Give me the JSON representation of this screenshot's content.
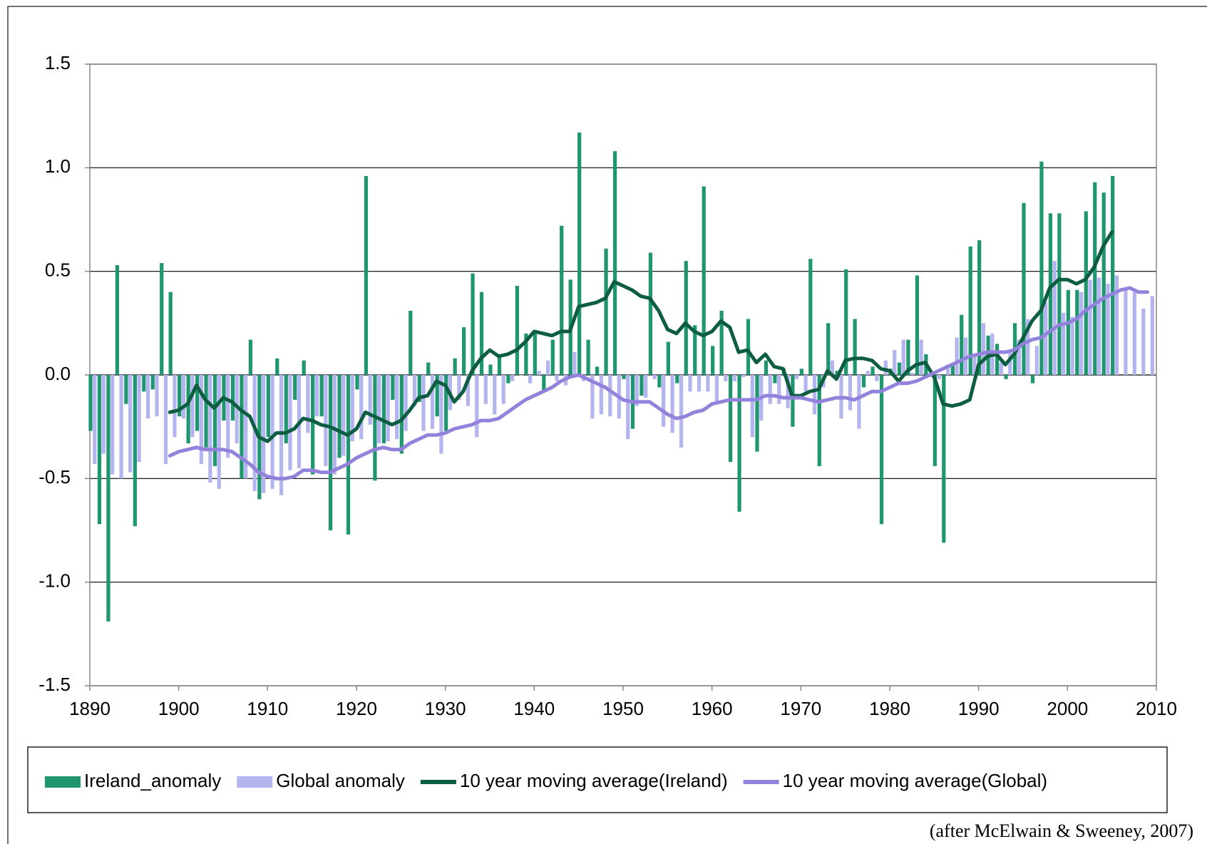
{
  "chart_data": {
    "type": "combo",
    "source": "(after McElwain & Sweeney, 2007)",
    "x": [
      1890,
      1891,
      1892,
      1893,
      1894,
      1895,
      1896,
      1897,
      1898,
      1899,
      1900,
      1901,
      1902,
      1903,
      1904,
      1905,
      1906,
      1907,
      1908,
      1909,
      1910,
      1911,
      1912,
      1913,
      1914,
      1915,
      1916,
      1917,
      1918,
      1919,
      1920,
      1921,
      1922,
      1923,
      1924,
      1925,
      1926,
      1927,
      1928,
      1929,
      1930,
      1931,
      1932,
      1933,
      1934,
      1935,
      1936,
      1937,
      1938,
      1939,
      1940,
      1941,
      1942,
      1943,
      1944,
      1945,
      1946,
      1947,
      1948,
      1949,
      1950,
      1951,
      1952,
      1953,
      1954,
      1955,
      1956,
      1957,
      1958,
      1959,
      1960,
      1961,
      1962,
      1963,
      1964,
      1965,
      1966,
      1967,
      1968,
      1969,
      1970,
      1971,
      1972,
      1973,
      1974,
      1975,
      1976,
      1977,
      1978,
      1979,
      1980,
      1981,
      1982,
      1983,
      1984,
      1985,
      1986,
      1987,
      1988,
      1989,
      1990,
      1991,
      1992,
      1993,
      1994,
      1995,
      1996,
      1997,
      1998,
      1999,
      2000,
      2001,
      2002,
      2003,
      2004,
      2005,
      2006,
      2007,
      2008,
      2009
    ],
    "series": [
      {
        "name": "Ireland_anomaly",
        "type": "bar",
        "color": "#1f9670",
        "values": [
          -0.27,
          -0.72,
          -1.19,
          0.53,
          -0.14,
          -0.73,
          -0.08,
          -0.07,
          0.54,
          0.4,
          -0.2,
          -0.33,
          -0.27,
          -0.35,
          -0.44,
          -0.22,
          -0.22,
          -0.5,
          0.17,
          -0.6,
          -0.3,
          0.08,
          -0.33,
          -0.12,
          0.07,
          -0.48,
          -0.2,
          -0.75,
          -0.4,
          -0.77,
          -0.07,
          0.96,
          -0.51,
          -0.33,
          -0.12,
          -0.38,
          0.31,
          -0.13,
          0.06,
          -0.2,
          -0.27,
          0.08,
          0.23,
          0.49,
          0.4,
          0.05,
          0.1,
          -0.04,
          0.43,
          0.2,
          0.21,
          -0.08,
          0.17,
          0.72,
          0.46,
          1.17,
          0.17,
          0.04,
          0.61,
          1.08,
          -0.02,
          -0.26,
          -0.1,
          0.59,
          -0.06,
          0.16,
          -0.04,
          0.55,
          0.24,
          0.91,
          0.14,
          0.31,
          -0.42,
          -0.66,
          0.27,
          -0.37,
          0.07,
          -0.04,
          0.03,
          -0.25,
          0.03,
          0.56,
          -0.44,
          0.25,
          0.02,
          0.51,
          0.27,
          -0.06,
          0.04,
          -0.72,
          0.03,
          0.06,
          0.17,
          0.48,
          0.1,
          -0.44,
          -0.81,
          0.05,
          0.29,
          0.62,
          0.65,
          0.19,
          0.15,
          -0.02,
          0.25,
          0.83,
          -0.04,
          1.03,
          0.78,
          0.78,
          0.41,
          0.41,
          0.79,
          0.93,
          0.88,
          0.96,
          null,
          null,
          null,
          null
        ]
      },
      {
        "name": "Global anomaly",
        "type": "bar",
        "color": "#b4b4ee",
        "values": [
          -0.43,
          -0.38,
          -0.48,
          -0.5,
          -0.47,
          -0.42,
          -0.21,
          -0.2,
          -0.43,
          -0.3,
          -0.21,
          -0.3,
          -0.43,
          -0.52,
          -0.55,
          -0.4,
          -0.33,
          -0.5,
          -0.56,
          -0.57,
          -0.55,
          -0.58,
          -0.46,
          -0.45,
          -0.28,
          -0.2,
          -0.44,
          -0.48,
          -0.39,
          -0.32,
          -0.31,
          -0.24,
          -0.33,
          -0.32,
          -0.31,
          -0.27,
          -0.15,
          -0.27,
          -0.26,
          -0.38,
          -0.17,
          -0.12,
          -0.15,
          -0.3,
          -0.14,
          -0.19,
          -0.14,
          -0.03,
          0.0,
          -0.04,
          0.02,
          0.07,
          -0.03,
          -0.05,
          0.11,
          -0.03,
          -0.21,
          -0.19,
          -0.2,
          -0.21,
          -0.31,
          -0.15,
          -0.11,
          -0.02,
          -0.25,
          -0.28,
          -0.35,
          -0.08,
          -0.08,
          -0.08,
          -0.14,
          -0.03,
          -0.03,
          -0.01,
          -0.3,
          -0.22,
          -0.14,
          -0.14,
          -0.16,
          -0.02,
          -0.08,
          -0.19,
          -0.06,
          0.07,
          -0.21,
          -0.17,
          -0.26,
          0.02,
          -0.03,
          0.07,
          0.12,
          0.17,
          0.01,
          0.17,
          -0.01,
          -0.02,
          0.05,
          0.18,
          0.18,
          0.1,
          0.25,
          0.2,
          0.06,
          0.11,
          0.17,
          0.27,
          0.14,
          0.35,
          0.55,
          0.3,
          0.28,
          0.4,
          0.46,
          0.47,
          0.44,
          0.48,
          0.42,
          0.4,
          0.32,
          0.38
        ]
      },
      {
        "name": "10 year moving average(Ireland)",
        "type": "line",
        "color": "#0d5e40",
        "values": [
          null,
          null,
          null,
          null,
          null,
          null,
          null,
          null,
          null,
          -0.18,
          -0.17,
          -0.14,
          -0.05,
          -0.12,
          -0.16,
          -0.11,
          -0.13,
          -0.17,
          -0.2,
          -0.3,
          -0.32,
          -0.28,
          -0.28,
          -0.26,
          -0.21,
          -0.22,
          -0.24,
          -0.25,
          -0.27,
          -0.29,
          -0.26,
          -0.18,
          -0.2,
          -0.22,
          -0.24,
          -0.22,
          -0.17,
          -0.11,
          -0.1,
          -0.03,
          -0.05,
          -0.13,
          -0.08,
          0.02,
          0.08,
          0.12,
          0.09,
          0.1,
          0.12,
          0.16,
          0.21,
          0.2,
          0.19,
          0.21,
          0.21,
          0.33,
          0.34,
          0.35,
          0.37,
          0.45,
          0.43,
          0.41,
          0.38,
          0.37,
          0.31,
          0.22,
          0.2,
          0.25,
          0.21,
          0.19,
          0.21,
          0.26,
          0.23,
          0.11,
          0.12,
          0.06,
          0.1,
          0.04,
          0.03,
          -0.1,
          -0.1,
          -0.08,
          -0.07,
          0.02,
          -0.02,
          0.07,
          0.08,
          0.08,
          0.07,
          0.03,
          0.02,
          -0.03,
          0.02,
          0.05,
          0.06,
          -0.01,
          -0.14,
          -0.15,
          -0.14,
          -0.12,
          0.05,
          0.09,
          0.1,
          0.05,
          0.1,
          0.18,
          0.26,
          0.31,
          0.42,
          0.46,
          0.46,
          0.44,
          0.46,
          0.52,
          0.62,
          0.69,
          null,
          null,
          null,
          null
        ]
      },
      {
        "name": "10 year moving average(Global)",
        "type": "line",
        "color": "#9282dc",
        "values": [
          null,
          null,
          null,
          null,
          null,
          null,
          null,
          null,
          null,
          -0.39,
          -0.37,
          -0.36,
          -0.35,
          -0.36,
          -0.36,
          -0.36,
          -0.37,
          -0.4,
          -0.43,
          -0.47,
          -0.49,
          -0.5,
          -0.5,
          -0.49,
          -0.46,
          -0.46,
          -0.47,
          -0.47,
          -0.45,
          -0.43,
          -0.4,
          -0.38,
          -0.36,
          -0.35,
          -0.36,
          -0.36,
          -0.33,
          -0.31,
          -0.29,
          -0.29,
          -0.28,
          -0.26,
          -0.25,
          -0.24,
          -0.22,
          -0.22,
          -0.21,
          -0.18,
          -0.15,
          -0.12,
          -0.1,
          -0.08,
          -0.06,
          -0.03,
          -0.01,
          0.0,
          -0.02,
          -0.04,
          -0.06,
          -0.09,
          -0.12,
          -0.13,
          -0.13,
          -0.13,
          -0.16,
          -0.19,
          -0.21,
          -0.2,
          -0.18,
          -0.17,
          -0.14,
          -0.13,
          -0.12,
          -0.12,
          -0.12,
          -0.12,
          -0.1,
          -0.1,
          -0.11,
          -0.11,
          -0.11,
          -0.12,
          -0.13,
          -0.12,
          -0.11,
          -0.11,
          -0.12,
          -0.1,
          -0.08,
          -0.08,
          -0.06,
          -0.04,
          -0.04,
          -0.03,
          -0.01,
          0.01,
          0.03,
          0.05,
          0.07,
          0.09,
          0.1,
          0.11,
          0.11,
          0.11,
          0.12,
          0.15,
          0.17,
          0.18,
          0.21,
          0.24,
          0.25,
          0.27,
          0.31,
          0.34,
          0.37,
          0.39,
          0.41,
          0.42,
          0.4,
          0.4
        ]
      }
    ],
    "xlim": [
      1890,
      2010
    ],
    "xticks": [
      1890,
      1900,
      1910,
      1920,
      1930,
      1940,
      1950,
      1960,
      1970,
      1980,
      1990,
      2000,
      2010
    ],
    "ylim": [
      -1.5,
      1.5
    ],
    "yticks": [
      {
        "value": -1.5,
        "label": "-1.5"
      },
      {
        "value": -1,
        "label": "-1.0"
      },
      {
        "value": -0.5,
        "label": "-0.5"
      },
      {
        "value": 0,
        "label": "0.0"
      },
      {
        "value": 0.5,
        "label": "0.5"
      },
      {
        "value": 1,
        "label": "1.0"
      },
      {
        "value": 1.5,
        "label": "1.5"
      }
    ],
    "grid": true,
    "legend": "bottom"
  }
}
